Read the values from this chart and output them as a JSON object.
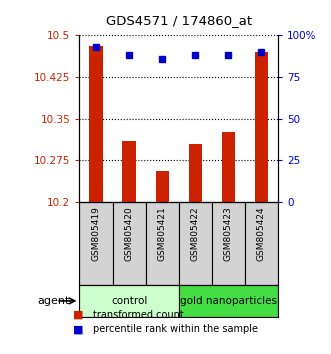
{
  "title": "GDS4571 / 174860_at",
  "categories": [
    "GSM805419",
    "GSM805420",
    "GSM805421",
    "GSM805422",
    "GSM805423",
    "GSM805424"
  ],
  "bar_values": [
    10.48,
    10.31,
    10.255,
    10.305,
    10.325,
    10.47
  ],
  "percentile_values": [
    93,
    88,
    86,
    88,
    88,
    90
  ],
  "ylim_left": [
    10.2,
    10.5
  ],
  "ylim_right": [
    0,
    100
  ],
  "yticks_left": [
    10.2,
    10.275,
    10.35,
    10.425,
    10.5
  ],
  "yticks_right": [
    0,
    25,
    50,
    75,
    100
  ],
  "ytick_labels_left": [
    "10.2",
    "10.275",
    "10.35",
    "10.425",
    "10.5"
  ],
  "ytick_labels_right": [
    "0",
    "25",
    "50",
    "75",
    "100%"
  ],
  "bar_color": "#CC2200",
  "dot_color": "#0000CC",
  "agent_groups": [
    {
      "label": "control",
      "indices": [
        0,
        1,
        2
      ],
      "color": "#CCFFCC"
    },
    {
      "label": "gold nanoparticles",
      "indices": [
        3,
        4,
        5
      ],
      "color": "#44DD44"
    }
  ],
  "agent_label": "agent",
  "legend_items": [
    {
      "label": "transformed count",
      "color": "#CC2200"
    },
    {
      "label": "percentile rank within the sample",
      "color": "#0000CC"
    }
  ],
  "left_tick_color": "#CC2200",
  "right_tick_color": "#0000CC"
}
